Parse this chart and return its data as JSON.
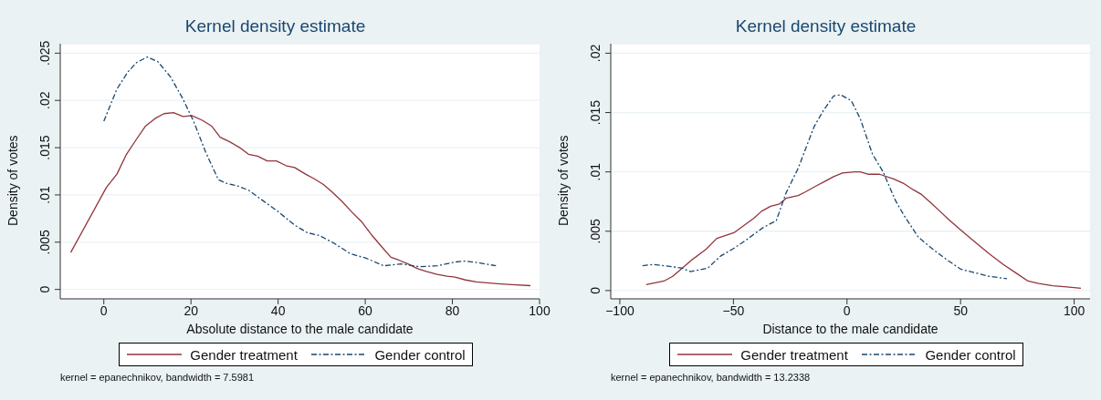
{
  "chart_data": [
    {
      "type": "line",
      "title": "Kernel density estimate",
      "xlabel": "Absolute distance to the male candidate",
      "ylabel": "Density of votes",
      "xlim": [
        -10,
        100
      ],
      "ylim": [
        -0.001,
        0.026
      ],
      "xticks": [
        0,
        20,
        40,
        60,
        80,
        100
      ],
      "yticks": [
        {
          "value": 0,
          "label": "0"
        },
        {
          "value": 0.005,
          "label": ".005"
        },
        {
          "value": 0.01,
          "label": ".01"
        },
        {
          "value": 0.015,
          "label": ".015"
        },
        {
          "value": 0.02,
          "label": ".02"
        },
        {
          "value": 0.025,
          "label": ".025"
        }
      ],
      "grid": "y",
      "legend": "bottom",
      "annotations": [
        "kernel = epanechnikov, bandwidth = 7.5981"
      ],
      "series": [
        {
          "name": "Gender treatment",
          "color": "#90353b",
          "line_style": "solid",
          "x": [
            -7.6,
            0.6,
            3,
            5.2,
            7.5,
            9.6,
            11.8,
            13.8,
            16,
            18.2,
            20.2,
            22.6,
            24.7,
            26.7,
            29,
            31.2,
            33.2,
            35.3,
            37.5,
            39.6,
            41.8,
            43.8,
            46.3,
            48.3,
            50.4,
            52.4,
            54.7,
            56.9,
            59.1,
            61.4,
            63.8,
            65.9,
            67.7,
            69.8,
            72,
            74,
            76.5,
            78.8,
            80.6,
            83,
            85.5,
            87.9,
            90.4,
            93.6,
            97.9
          ],
          "values": [
            0.0039,
            0.0108,
            0.0122,
            0.0143,
            0.0159,
            0.0173,
            0.0181,
            0.0186,
            0.0187,
            0.0183,
            0.0184,
            0.0179,
            0.0173,
            0.0161,
            0.0156,
            0.015,
            0.0143,
            0.0141,
            0.0136,
            0.0136,
            0.0131,
            0.0129,
            0.0122,
            0.0117,
            0.0111,
            0.0103,
            0.0093,
            0.0082,
            0.0072,
            0.0058,
            0.0045,
            0.0034,
            0.0031,
            0.0027,
            0.0022,
            0.0019,
            0.0016,
            0.0014,
            0.0013,
            0.001,
            0.0008,
            0.0007,
            0.0006,
            0.0005,
            0.0004
          ]
        },
        {
          "name": "Gender control",
          "color": "#1a476f",
          "line_style": "dashed",
          "x": [
            0,
            3,
            5.5,
            7.5,
            10,
            12.4,
            15.3,
            18.1,
            20.6,
            23.4,
            26.3,
            28.3,
            30.4,
            33.2,
            36.5,
            39.8,
            43.8,
            46.7,
            49.5,
            52.8,
            56.5,
            60.2,
            64.2,
            68.3,
            72.4,
            76.5,
            80.6,
            83,
            86.3,
            90
          ],
          "values": [
            0.0178,
            0.0212,
            0.023,
            0.024,
            0.0246,
            0.0241,
            0.0225,
            0.0202,
            0.0178,
            0.0145,
            0.0116,
            0.0112,
            0.011,
            0.0105,
            0.0094,
            0.0083,
            0.0068,
            0.006,
            0.0057,
            0.0049,
            0.0038,
            0.0033,
            0.0025,
            0.0027,
            0.0024,
            0.0025,
            0.0029,
            0.003,
            0.0028,
            0.0025
          ]
        }
      ]
    },
    {
      "type": "line",
      "title": "Kernel density estimate",
      "xlabel": "Distance to the male candidate",
      "ylabel": "Density of votes",
      "xlim": [
        -104,
        107
      ],
      "ylim": [
        -0.0007,
        0.0208
      ],
      "xticks": [
        {
          "value": -100,
          "label": "−100"
        },
        {
          "value": -50,
          "label": "−50"
        },
        0,
        50,
        100
      ],
      "yticks": [
        {
          "value": 0,
          "label": "0"
        },
        {
          "value": 0.005,
          "label": ".005"
        },
        {
          "value": 0.01,
          "label": ".01"
        },
        {
          "value": 0.015,
          "label": ".015"
        },
        {
          "value": 0.02,
          "label": ".02"
        }
      ],
      "grid": "y",
      "legend": "bottom",
      "annotations": [
        "kernel = epanechnikov, bandwidth = 13.2338"
      ],
      "series": [
        {
          "name": "Gender treatment",
          "color": "#90353b",
          "line_style": "solid",
          "x": [
            -88.4,
            -80.6,
            -76.7,
            -68.2,
            -61.9,
            -57.3,
            -49.5,
            -41,
            -37.5,
            -33.6,
            -29.7,
            -26.6,
            -21.5,
            -18.4,
            -13.7,
            -9.8,
            -5.9,
            -2,
            3.4,
            5.8,
            9.6,
            14.3,
            20.5,
            25.2,
            29.1,
            32.8,
            36.9,
            40.8,
            44.7,
            50.1,
            56.3,
            62.6,
            68.8,
            75,
            79.7,
            84.4,
            90.6,
            96.8,
            103
          ],
          "values": [
            0.0005,
            0.0008,
            0.0012,
            0.0026,
            0.0035,
            0.0044,
            0.0049,
            0.0061,
            0.0067,
            0.0071,
            0.0073,
            0.0078,
            0.008,
            0.0083,
            0.0088,
            0.0092,
            0.0096,
            0.0099,
            0.01,
            0.01,
            0.0098,
            0.0098,
            0.0094,
            0.009,
            0.0085,
            0.0081,
            0.0074,
            0.0067,
            0.006,
            0.0051,
            0.0041,
            0.0031,
            0.0022,
            0.0014,
            0.0008,
            0.0006,
            0.0004,
            0.0003,
            0.0002
          ]
        },
        {
          "name": "Gender control",
          "color": "#1a476f",
          "line_style": "dashed",
          "x": [
            -90,
            -85.3,
            -80.6,
            -72.8,
            -68.9,
            -61.2,
            -55.7,
            -50.3,
            -44.8,
            -37,
            -31.1,
            -26.9,
            -21.5,
            -14.5,
            -10.6,
            -5.9,
            -2.8,
            1.9,
            5.8,
            11.2,
            15.9,
            21.3,
            25.2,
            31.4,
            37.7,
            43.9,
            50.1,
            56.3,
            62.6,
            70.4
          ],
          "values": [
            0.0021,
            0.0022,
            0.0021,
            0.0019,
            0.0016,
            0.0019,
            0.0029,
            0.0035,
            0.0042,
            0.0053,
            0.0059,
            0.0082,
            0.0103,
            0.0138,
            0.0151,
            0.0164,
            0.0165,
            0.016,
            0.0145,
            0.0115,
            0.01,
            0.0076,
            0.0063,
            0.0045,
            0.0035,
            0.0026,
            0.0018,
            0.0015,
            0.0012,
            0.001
          ]
        }
      ]
    }
  ]
}
